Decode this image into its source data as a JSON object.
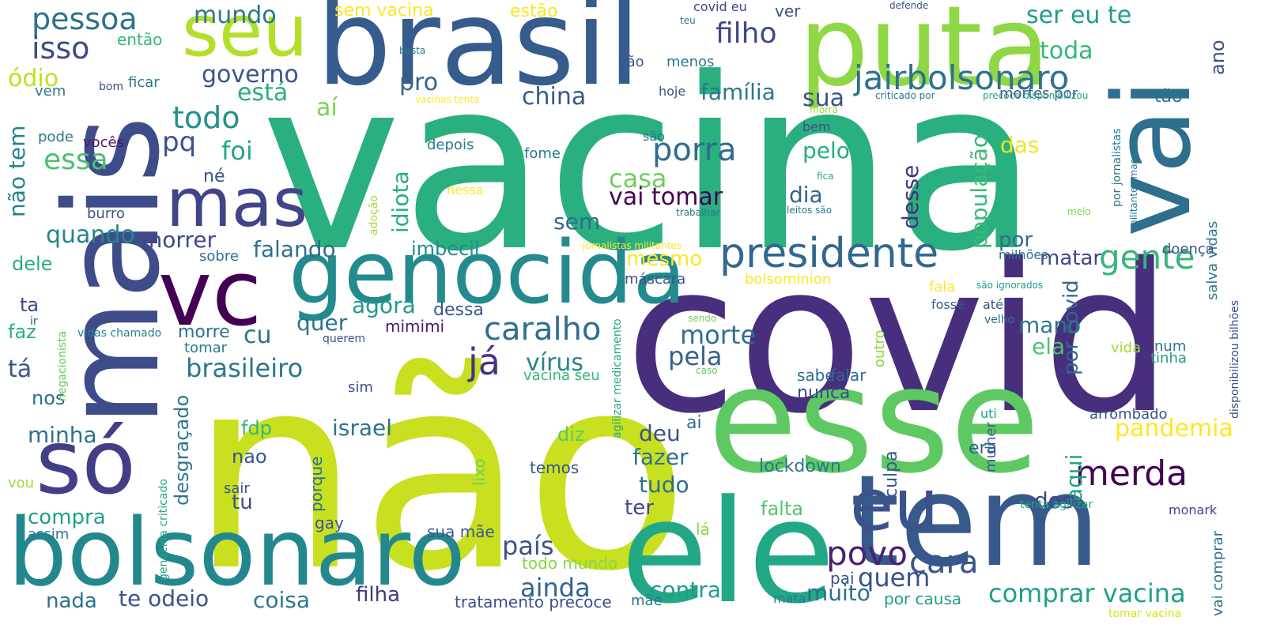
{
  "words": [
    {
      "text": "vacina",
      "color": "#2aaf7f"
    },
    {
      "text": "não",
      "color": "#c8e020"
    },
    {
      "text": "covid",
      "color": "#472f7d"
    },
    {
      "text": "mais",
      "color": "#3e4c8a"
    },
    {
      "text": "brasil",
      "color": "#365c8d"
    },
    {
      "text": "puta",
      "color": "#8fd744"
    },
    {
      "text": "vai",
      "color": "#2e6f8e"
    },
    {
      "text": "esse",
      "color": "#5ec962"
    },
    {
      "text": "ele",
      "color": "#22a884"
    },
    {
      "text": "tem",
      "color": "#38598c"
    },
    {
      "text": "bolsonaro",
      "color": "#23888e"
    },
    {
      "text": "só",
      "color": "#433e85"
    },
    {
      "text": "vc",
      "color": "#440154"
    },
    {
      "text": "genocida",
      "color": "#238a8d"
    },
    {
      "text": "eu",
      "color": "#3b528b"
    },
    {
      "text": "seu",
      "color": "#b5de2b"
    },
    {
      "text": "mas",
      "color": "#414487"
    },
    {
      "text": "presidente",
      "color": "#31688e"
    },
    {
      "text": "jairbolsonaro",
      "color": "#2c728e"
    },
    {
      "text": "merda",
      "color": "#440154"
    },
    {
      "text": "povo",
      "color": "#482173"
    },
    {
      "text": "cara",
      "color": "#39568c"
    },
    {
      "text": "gente",
      "color": "#35b779"
    },
    {
      "text": "caralho",
      "color": "#2e6e8e"
    },
    {
      "text": "já",
      "color": "#463480"
    },
    {
      "text": "porra",
      "color": "#2f6c8e"
    },
    {
      "text": "pessoa",
      "color": "#2c728e"
    },
    {
      "text": "isso",
      "color": "#3e4a89"
    },
    {
      "text": "filho",
      "color": "#3f4889"
    },
    {
      "text": "comprar vacina",
      "color": "#1fa088"
    },
    {
      "text": "pandemia",
      "color": "#fde725"
    },
    {
      "text": "quem",
      "color": "#3a538b"
    },
    {
      "text": "ainda",
      "color": "#33638d"
    },
    {
      "text": "país",
      "color": "#3b528b"
    },
    {
      "text": "morte",
      "color": "#2d708e"
    },
    {
      "text": "pela",
      "color": "#33638d"
    },
    {
      "text": "vírus",
      "color": "#25858e"
    },
    {
      "text": "casa",
      "color": "#6ece58"
    },
    {
      "text": "vai tomar",
      "color": "#440154"
    },
    {
      "text": "essa",
      "color": "#4ac16d"
    },
    {
      "text": "todo",
      "color": "#21918c"
    },
    {
      "text": "pq",
      "color": "#3b528b"
    },
    {
      "text": "foi",
      "color": "#22a884"
    },
    {
      "text": "governo",
      "color": "#39568c"
    },
    {
      "text": "mundo",
      "color": "#2a788e"
    },
    {
      "text": "ser eu te",
      "color": "#1f9e89"
    },
    {
      "text": "toda",
      "color": "#35b779"
    },
    {
      "text": "china",
      "color": "#38598c"
    },
    {
      "text": "sua",
      "color": "#3b528b"
    },
    {
      "text": "família",
      "color": "#2a788e"
    },
    {
      "text": "está",
      "color": "#29af7f"
    },
    {
      "text": "aí",
      "color": "#7ad151"
    },
    {
      "text": "pro",
      "color": "#33638d"
    },
    {
      "text": "ódio",
      "color": "#c2df23"
    },
    {
      "text": "não tem",
      "color": "#25848e"
    },
    {
      "text": "brasileiro",
      "color": "#2a788e"
    },
    {
      "text": "quando",
      "color": "#24868e"
    },
    {
      "text": "morrer",
      "color": "#3e4989"
    },
    {
      "text": "falando",
      "color": "#2d708e"
    },
    {
      "text": "imbecil",
      "color": "#228d8d"
    },
    {
      "text": "agora",
      "color": "#1f998a"
    },
    {
      "text": "quer",
      "color": "#2c728e"
    },
    {
      "text": "cu",
      "color": "#2b748e"
    },
    {
      "text": "idiota",
      "color": "#28ae80"
    },
    {
      "text": "sem",
      "color": "#2f6c8e"
    },
    {
      "text": "mesmo",
      "color": "#fde725"
    },
    {
      "text": "desse",
      "color": "#46327e"
    },
    {
      "text": "população",
      "color": "#3aba76"
    },
    {
      "text": "das",
      "color": "#f1e51d"
    },
    {
      "text": "pelo",
      "color": "#26ad81"
    },
    {
      "text": "dia",
      "color": "#33638d"
    },
    {
      "text": "por",
      "color": "#2e6e8e"
    },
    {
      "text": "matar",
      "color": "#404588"
    },
    {
      "text": "aqui",
      "color": "#20a486"
    },
    {
      "text": "por covid",
      "color": "#31688e"
    },
    {
      "text": "ela",
      "color": "#4ec36b"
    },
    {
      "text": "mano",
      "color": "#2a788e"
    },
    {
      "text": "dos",
      "color": "#3e4a89"
    },
    {
      "text": "fazer",
      "color": "#2c728e"
    },
    {
      "text": "tudo",
      "color": "#2e6e8e"
    },
    {
      "text": "deu",
      "color": "#3b528b"
    },
    {
      "text": "ter",
      "color": "#3e4a89"
    },
    {
      "text": "contra",
      "color": "#1f9e89"
    },
    {
      "text": "muito",
      "color": "#2e6e8e"
    },
    {
      "text": "israel",
      "color": "#2b748e"
    },
    {
      "text": "nao",
      "color": "#39568c"
    },
    {
      "text": "fdp",
      "color": "#36b677"
    },
    {
      "text": "tu",
      "color": "#3b528b"
    },
    {
      "text": "diz",
      "color": "#5ec962"
    },
    {
      "text": "minha",
      "color": "#2c728e"
    },
    {
      "text": "compra",
      "color": "#1fa088"
    },
    {
      "text": "nada",
      "color": "#2c728e"
    },
    {
      "text": "te odeio",
      "color": "#3b528b"
    },
    {
      "text": "coisa",
      "color": "#2a788e"
    },
    {
      "text": "filha",
      "color": "#453781"
    },
    {
      "text": "tratamento precoce",
      "color": "#3c4f8a"
    },
    {
      "text": "tá",
      "color": "#3b528b"
    },
    {
      "text": "ta",
      "color": "#3f4788"
    },
    {
      "text": "faz",
      "color": "#2ab07f"
    },
    {
      "text": "nos",
      "color": "#2d708e"
    },
    {
      "text": "dele",
      "color": "#29af7f"
    },
    {
      "text": "desgraçado",
      "color": "#2b758e"
    },
    {
      "text": "morre",
      "color": "#2c728e"
    },
    {
      "text": "dessa",
      "color": "#3b528b"
    },
    {
      "text": "mimimi",
      "color": "#481769"
    },
    {
      "text": "ai",
      "color": "#2d708e"
    },
    {
      "text": "nunca",
      "color": "#3e4a89"
    },
    {
      "text": "sabe",
      "color": "#2d708e"
    },
    {
      "text": "falar",
      "color": "#31688e"
    },
    {
      "text": "era",
      "color": "#35608d"
    },
    {
      "text": "falta",
      "color": "#52c569"
    },
    {
      "text": "lockdown",
      "color": "#2b748e"
    },
    {
      "text": "culpa",
      "color": "#39568c"
    },
    {
      "text": "temos",
      "color": "#39568c"
    },
    {
      "text": "porque",
      "color": "#2e6e8e"
    },
    {
      "text": "lixo",
      "color": "#73d056"
    },
    {
      "text": "gay",
      "color": "#3b528b"
    },
    {
      "text": "lá",
      "color": "#89d548"
    },
    {
      "text": "pai",
      "color": "#3b528b"
    },
    {
      "text": "sua mãe",
      "color": "#38598c"
    },
    {
      "text": "todo mundo",
      "color": "#89d548"
    },
    {
      "text": "mãe",
      "color": "#2a788e"
    },
    {
      "text": "por causa",
      "color": "#1fa088"
    },
    {
      "text": "mata",
      "color": "#2a788e"
    },
    {
      "text": "tomar vacina",
      "color": "#d8e219"
    },
    {
      "text": "vai comprar",
      "color": "#2d708e"
    },
    {
      "text": "monark",
      "color": "#404588"
    },
    {
      "text": "mulher",
      "color": "#35608d"
    },
    {
      "text": "arrombado",
      "color": "#3b528b"
    },
    {
      "text": "uti",
      "color": "#1fa088"
    },
    {
      "text": "vida",
      "color": "#a0da39"
    },
    {
      "text": "num",
      "color": "#2c728e"
    },
    {
      "text": "tinha",
      "color": "#1f998a"
    },
    {
      "text": "salva vidas",
      "color": "#2a788e"
    },
    {
      "text": "doença",
      "color": "#3b528b"
    },
    {
      "text": "disponibilizou bilhões",
      "color": "#3e4a89"
    },
    {
      "text": "ano",
      "color": "#3b528b"
    },
    {
      "text": "tão",
      "color": "#2c728e"
    },
    {
      "text": "mortes por",
      "color": "#3b528b"
    },
    {
      "text": "milhões",
      "color": "#2c728e"
    },
    {
      "text": "até",
      "color": "#3b528b"
    },
    {
      "text": "fosse",
      "color": "#39568c"
    },
    {
      "text": "velho",
      "color": "#2c728e"
    },
    {
      "text": "fala",
      "color": "#fde725"
    },
    {
      "text": "são ignorados",
      "color": "#1fa088"
    },
    {
      "text": "outro",
      "color": "#8fd744"
    },
    {
      "text": "sendo",
      "color": "#7ad151"
    },
    {
      "text": "caso",
      "color": "#5ec962"
    },
    {
      "text": "agilizar medicamento",
      "color": "#22a884"
    },
    {
      "text": "bolsominion",
      "color": "#fde725"
    },
    {
      "text": "máscara",
      "color": "#3b528b"
    },
    {
      "text": "jornalistas militantes",
      "color": "#fde725"
    },
    {
      "text": "sobre",
      "color": "#2c728e"
    },
    {
      "text": "tomar",
      "color": "#2a788e"
    },
    {
      "text": "querem",
      "color": "#3b528b"
    },
    {
      "text": "vacina seu",
      "color": "#35b779"
    },
    {
      "text": "sim",
      "color": "#3b528b"
    },
    {
      "text": "sair",
      "color": "#3b528b"
    },
    {
      "text": "vou",
      "color": "#a0da39"
    },
    {
      "text": "assim",
      "color": "#2a788e"
    },
    {
      "text": "genocida criticado",
      "color": "#22a884"
    },
    {
      "text": "vidas chamado",
      "color": "#25848e"
    },
    {
      "text": "negacionista",
      "color": "#5ec962"
    },
    {
      "text": "ir",
      "color": "#3b528b"
    },
    {
      "text": "burro",
      "color": "#3b528b"
    },
    {
      "text": "vocês",
      "color": "#481769"
    },
    {
      "text": "pode",
      "color": "#2a788e"
    },
    {
      "text": "vem",
      "color": "#2a788e"
    },
    {
      "text": "bom",
      "color": "#3b528b"
    },
    {
      "text": "ficar",
      "color": "#2a788e"
    },
    {
      "text": "então",
      "color": "#35b779"
    },
    {
      "text": "sem vacina",
      "color": "#fde725"
    },
    {
      "text": "estão",
      "color": "#fde725"
    },
    {
      "text": "ver",
      "color": "#3b528b"
    },
    {
      "text": "covid eu",
      "color": "#404588"
    },
    {
      "text": "teu",
      "color": "#2a788e"
    },
    {
      "text": "defende",
      "color": "#3b528b"
    },
    {
      "text": "bosta",
      "color": "#2a788e"
    },
    {
      "text": "vão",
      "color": "#3b528b"
    },
    {
      "text": "menos",
      "color": "#2a788e"
    },
    {
      "text": "hoje",
      "color": "#3b528b"
    },
    {
      "text": "vacinas tenta",
      "color": "#fde725"
    },
    {
      "text": "criticado por",
      "color": "#2a788e"
    },
    {
      "text": "precoce disponibilizou",
      "color": "#22a884"
    },
    {
      "text": "morra",
      "color": "#a0da39"
    },
    {
      "text": "bem",
      "color": "#3b528b"
    },
    {
      "text": "são",
      "color": "#2a788e"
    },
    {
      "text": "fome",
      "color": "#2a788e"
    },
    {
      "text": "depois",
      "color": "#2a788e"
    },
    {
      "text": "né",
      "color": "#3b528b"
    },
    {
      "text": "nessa",
      "color": "#fde725"
    },
    {
      "text": "adoção",
      "color": "#a0da39"
    },
    {
      "text": "trabalhar",
      "color": "#2a788e"
    },
    {
      "text": "leitos são",
      "color": "#2a788e"
    },
    {
      "text": "fica",
      "color": "#22a884"
    },
    {
      "text": "meio",
      "color": "#7ad151"
    },
    {
      "text": "por jornalistas",
      "color": "#2a788e"
    },
    {
      "text": "militantes mas",
      "color": "#2a788e"
    },
    {
      "text": "tenta agilizar",
      "color": "#22a884"
    }
  ]
}
